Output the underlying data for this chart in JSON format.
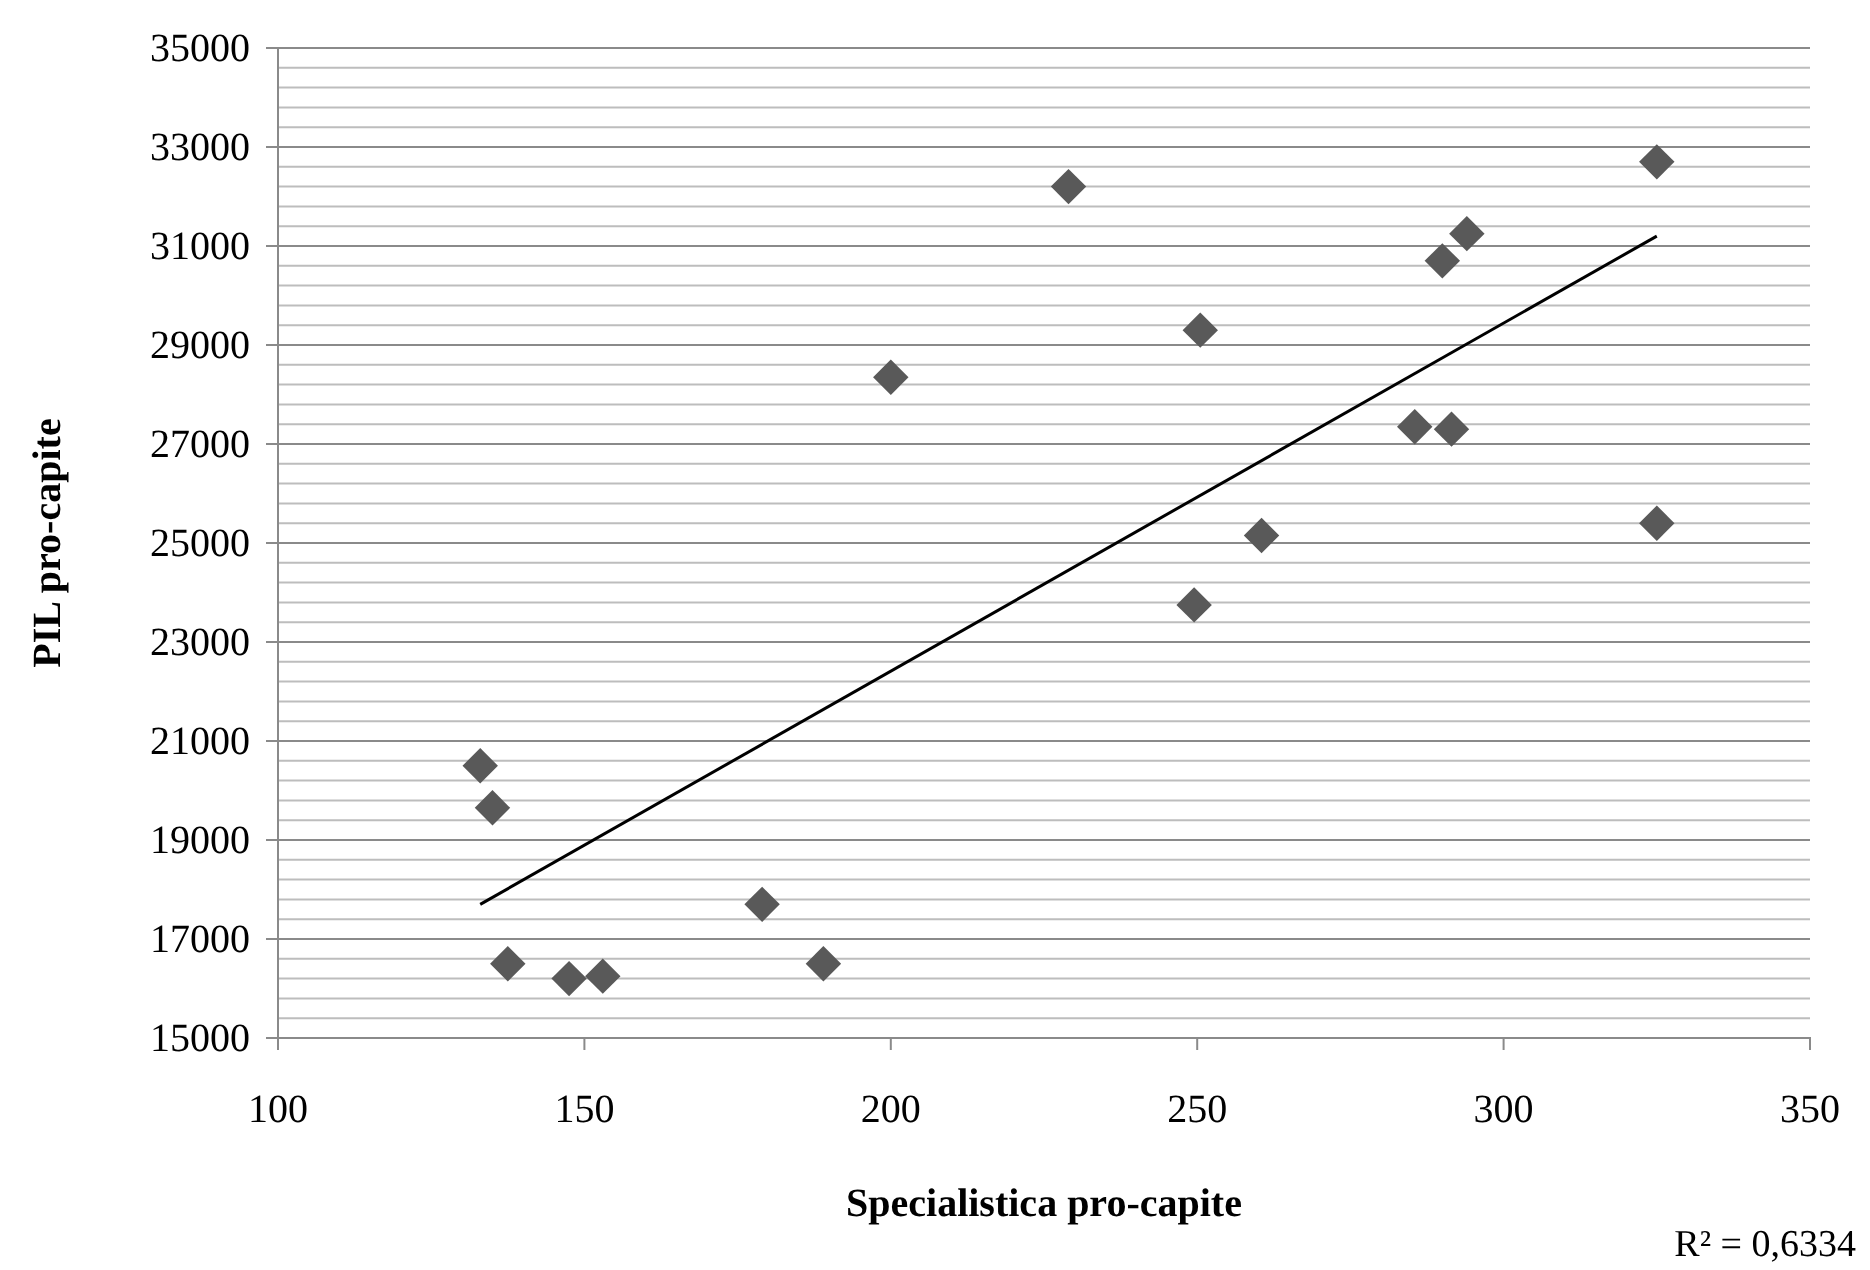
{
  "chart_data": {
    "type": "scatter",
    "xlabel": "Specialistica pro-capite",
    "ylabel": "PIL pro-capite",
    "xlim": [
      100,
      350
    ],
    "xticks": [
      100,
      150,
      200,
      250,
      300,
      350
    ],
    "ylim": [
      15000,
      35000
    ],
    "yticks": [
      15000,
      17000,
      19000,
      21000,
      23000,
      25000,
      27000,
      29000,
      31000,
      33000,
      35000
    ],
    "grid": "y",
    "annotations": [
      "R² = 0,6334"
    ],
    "series": [
      {
        "marker": "diamond",
        "color": "#595959",
        "x": [
          133,
          135,
          137.5,
          147.5,
          153,
          179,
          189,
          200,
          229,
          249.5,
          250.5,
          260.5,
          285.5,
          291.5,
          290,
          294,
          325,
          325
        ],
        "values": [
          20500,
          19650,
          16500,
          16200,
          16250,
          17700,
          16500,
          28350,
          32200,
          23750,
          29300,
          25150,
          27350,
          27300,
          30700,
          31250,
          32700,
          25400
        ]
      },
      {
        "type": "line",
        "color": "#000000",
        "x": [
          133,
          325
        ],
        "values": [
          17700,
          31200
        ]
      }
    ]
  }
}
